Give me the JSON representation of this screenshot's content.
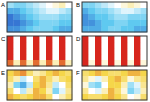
{
  "chart_data": [
    {
      "type": "heatmap",
      "title": "A",
      "zlim": [
        0,
        1
      ],
      "cells": [
        [
          0.35,
          0.3,
          0.3,
          0.35,
          0.4,
          0.45,
          0.5,
          0.55,
          0.6,
          0.5
        ],
        [
          0.2,
          0.2,
          0.25,
          0.3,
          0.35,
          0.4,
          0.45,
          0.45,
          0.4,
          0.35
        ],
        [
          0.1,
          0.15,
          0.2,
          0.25,
          0.3,
          0.35,
          0.35,
          0.35,
          0.3,
          0.3
        ],
        [
          0.1,
          0.1,
          0.15,
          0.2,
          0.25,
          0.3,
          0.3,
          0.3,
          0.25,
          0.25
        ],
        [
          0.15,
          0.15,
          0.2,
          0.25,
          0.3,
          0.3,
          0.3,
          0.25,
          0.2,
          0.2
        ]
      ]
    },
    {
      "type": "heatmap",
      "title": "B",
      "zlim": [
        0,
        1
      ],
      "cells": [
        [
          0.3,
          0.3,
          0.35,
          0.4,
          0.45,
          0.5,
          0.55,
          0.6,
          0.55,
          0.5
        ],
        [
          0.2,
          0.25,
          0.3,
          0.3,
          0.35,
          0.4,
          0.45,
          0.45,
          0.4,
          0.35
        ],
        [
          0.15,
          0.2,
          0.25,
          0.25,
          0.3,
          0.35,
          0.35,
          0.3,
          0.3,
          0.3
        ],
        [
          0.15,
          0.15,
          0.2,
          0.25,
          0.25,
          0.3,
          0.3,
          0.25,
          0.25,
          0.25
        ],
        [
          0.2,
          0.2,
          0.2,
          0.25,
          0.3,
          0.3,
          0.25,
          0.25,
          0.2,
          0.2
        ]
      ]
    },
    {
      "type": "heatmap",
      "title": "C",
      "zlim": [
        0,
        1
      ],
      "cells": [
        [
          1,
          0.5,
          1,
          0.5,
          1,
          0.5,
          1,
          0.5,
          1,
          0.5
        ],
        [
          1,
          0.5,
          1,
          0.5,
          1,
          0.5,
          1,
          0.5,
          1,
          0.5
        ],
        [
          1,
          0.5,
          1,
          0.5,
          1,
          0.5,
          1,
          0.5,
          1,
          0.5
        ],
        [
          1,
          0.5,
          1,
          0.5,
          1,
          0.5,
          1,
          0.5,
          1,
          0.5
        ],
        [
          0.9,
          0.6,
          0.9,
          0.6,
          0.9,
          0.6,
          0.9,
          0.6,
          0.9,
          0.6
        ]
      ]
    },
    {
      "type": "heatmap",
      "title": "D",
      "zlim": [
        0,
        1
      ],
      "cells": [
        [
          1,
          0.5,
          1,
          0.5,
          1,
          0.5,
          1,
          0.5,
          1,
          0.5
        ],
        [
          1,
          0.5,
          1,
          0.5,
          1,
          0.5,
          1,
          0.5,
          1,
          0.5
        ],
        [
          1,
          0.5,
          1,
          0.5,
          1,
          0.5,
          1,
          0.5,
          1,
          0.5
        ],
        [
          1,
          0.5,
          1,
          0.5,
          1,
          0.5,
          1,
          0.5,
          1,
          0.5
        ],
        [
          1,
          0.55,
          1,
          0.55,
          1,
          0.55,
          1,
          0.55,
          1,
          0.55
        ]
      ]
    },
    {
      "type": "heatmap",
      "title": "E",
      "zlim": [
        0,
        1
      ],
      "cells": [
        [
          0.75,
          0.8,
          0.85,
          0.7,
          0.6,
          0.65,
          0.75,
          0.8,
          0.75,
          0.7
        ],
        [
          0.7,
          0.6,
          0.4,
          0.5,
          0.7,
          0.8,
          0.7,
          0.6,
          0.7,
          0.75
        ],
        [
          0.6,
          0.3,
          0.2,
          0.4,
          0.75,
          0.8,
          0.65,
          0.4,
          0.5,
          0.7
        ],
        [
          0.7,
          0.5,
          0.4,
          0.6,
          0.8,
          0.75,
          0.6,
          0.3,
          0.45,
          0.65
        ],
        [
          0.8,
          0.75,
          0.7,
          0.75,
          0.8,
          0.8,
          0.7,
          0.5,
          0.6,
          0.7
        ]
      ]
    },
    {
      "type": "heatmap",
      "title": "F",
      "zlim": [
        0,
        1
      ],
      "cells": [
        [
          0.7,
          0.75,
          0.8,
          0.75,
          0.7,
          0.7,
          0.75,
          0.8,
          0.8,
          0.75
        ],
        [
          0.65,
          0.55,
          0.45,
          0.6,
          0.75,
          0.8,
          0.7,
          0.55,
          0.65,
          0.7
        ],
        [
          0.55,
          0.35,
          0.3,
          0.5,
          0.75,
          0.75,
          0.6,
          0.35,
          0.45,
          0.65
        ],
        [
          0.65,
          0.5,
          0.45,
          0.6,
          0.8,
          0.7,
          0.55,
          0.3,
          0.4,
          0.6
        ],
        [
          0.75,
          0.7,
          0.7,
          0.75,
          0.8,
          0.75,
          0.65,
          0.5,
          0.55,
          0.7
        ]
      ]
    }
  ]
}
